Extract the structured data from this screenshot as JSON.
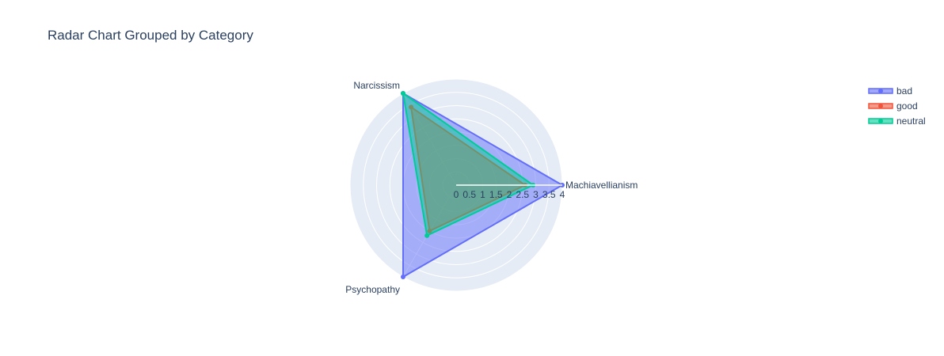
{
  "chart_data": {
    "type": "radar",
    "title": "Radar Chart Grouped by Category",
    "axes": [
      "Machiavellianism",
      "Narcissism",
      "Psychopathy"
    ],
    "radial_range": [
      0,
      4
    ],
    "radial_ticks": [
      "0",
      "0.5",
      "1",
      "1.5",
      "2",
      "2.5",
      "3",
      "3.5",
      "4"
    ],
    "series": [
      {
        "name": "bad",
        "values": [
          4,
          4,
          4
        ],
        "color": "#636efa"
      },
      {
        "name": "good",
        "values": [
          2.6,
          3.4,
          2.0
        ],
        "color": "#ef553b"
      },
      {
        "name": "neutral",
        "values": [
          2.9,
          4.0,
          2.2
        ],
        "color": "#00cc96"
      }
    ],
    "legend_position": "top-right",
    "grid": true,
    "polar_background": "#e5ecf6"
  }
}
